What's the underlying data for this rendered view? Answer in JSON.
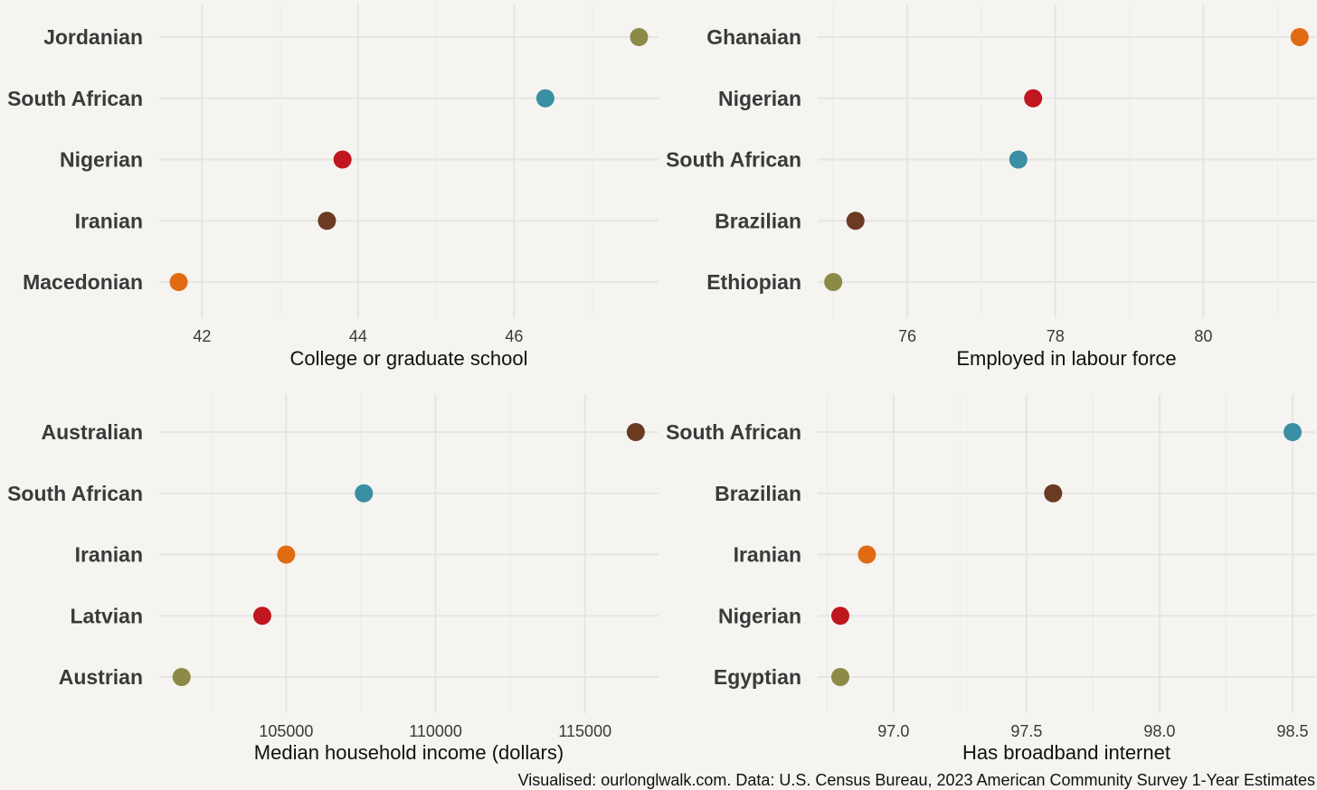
{
  "chart_data": [
    {
      "type": "scatter",
      "xlabel": "College or graduate school",
      "categories": [
        "Jordanian",
        "South African",
        "Nigerian",
        "Iranian",
        "Macedonian"
      ],
      "values": [
        47.6,
        46.4,
        43.8,
        43.6,
        41.7
      ],
      "colors": [
        "#8c8a47",
        "#3a8fa3",
        "#c0161f",
        "#6b3a22",
        "#e06b12"
      ],
      "xlim": [
        41.45,
        47.85
      ],
      "xticks": [
        42,
        44,
        46
      ],
      "xtick_labels": [
        "42",
        "44",
        "46"
      ]
    },
    {
      "type": "scatter",
      "xlabel": "Employed in labour force",
      "categories": [
        "Ghanaian",
        "Nigerian",
        "South African",
        "Brazilian",
        "Ethiopian"
      ],
      "values": [
        81.3,
        77.7,
        77.5,
        75.3,
        75.0
      ],
      "colors": [
        "#e06b12",
        "#c0161f",
        "#3a8fa3",
        "#6b3a22",
        "#8c8a47"
      ],
      "xlim": [
        74.79,
        81.51
      ],
      "xticks": [
        76,
        78,
        80
      ],
      "xtick_labels": [
        "76",
        "78",
        "80"
      ]
    },
    {
      "type": "scatter",
      "xlabel": "Median household income (dollars)",
      "categories": [
        "Australian",
        "South African",
        "Iranian",
        "Latvian",
        "Austrian"
      ],
      "values": [
        116700,
        107600,
        105000,
        104200,
        101500
      ],
      "colors": [
        "#6b3a22",
        "#3a8fa3",
        "#e06b12",
        "#c0161f",
        "#8c8a47"
      ],
      "xlim": [
        100750,
        117460
      ],
      "xticks": [
        105000,
        110000,
        115000
      ],
      "xtick_labels": [
        "105000",
        "110000",
        "115000"
      ]
    },
    {
      "type": "scatter",
      "xlabel": "Has broadband internet",
      "categories": [
        "South African",
        "Brazilian",
        "Iranian",
        "Nigerian",
        "Egyptian"
      ],
      "values": [
        98.5,
        97.6,
        96.9,
        96.8,
        96.8
      ],
      "colors": [
        "#3a8fa3",
        "#6b3a22",
        "#e06b12",
        "#c0161f",
        "#8c8a47"
      ],
      "xlim": [
        96.715,
        98.585
      ],
      "xticks": [
        97.0,
        97.5,
        98.0,
        98.5
      ],
      "xtick_labels": [
        "97.0",
        "97.5",
        "98.0",
        "98.5"
      ]
    }
  ],
  "caption": "Visualised: ourlonglwalk.com. Data: U.S. Census Bureau, 2023 American Community Survey 1-Year Estimates"
}
